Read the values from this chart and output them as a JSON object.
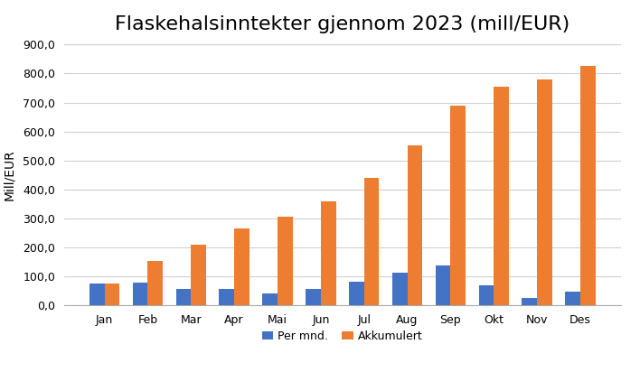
{
  "title": "Flaskehalsinntekter gjennom 2023 (mill/EUR)",
  "ylabel": "Mill/EUR",
  "months": [
    "Jan",
    "Feb",
    "Mar",
    "Apr",
    "Mai",
    "Jun",
    "Jul",
    "Aug",
    "Sep",
    "Okt",
    "Nov",
    "Des"
  ],
  "per_mnd": [
    74.1,
    77.2,
    56.1,
    56.5,
    41.1,
    54.3,
    80.2,
    112.0,
    136.6,
    67.3,
    23.0,
    46.6
  ],
  "accumulated": [
    74.1,
    151.3,
    207.4,
    263.9,
    305.0,
    359.3,
    439.5,
    551.5,
    688.1,
    755.4,
    778.4,
    825.0
  ],
  "bar_color_blue": "#4472C4",
  "bar_color_orange": "#ED7D31",
  "legend_labels": [
    "Per mnd.",
    "Akkumulert"
  ],
  "ylim": [
    0,
    900
  ],
  "yticks": [
    0,
    100,
    200,
    300,
    400,
    500,
    600,
    700,
    800,
    900
  ],
  "background_color": "#ffffff",
  "grid_color": "#d0d0d0",
  "title_fontsize": 16,
  "axis_label_fontsize": 10,
  "tick_fontsize": 9,
  "legend_fontsize": 9,
  "bar_width": 0.35
}
